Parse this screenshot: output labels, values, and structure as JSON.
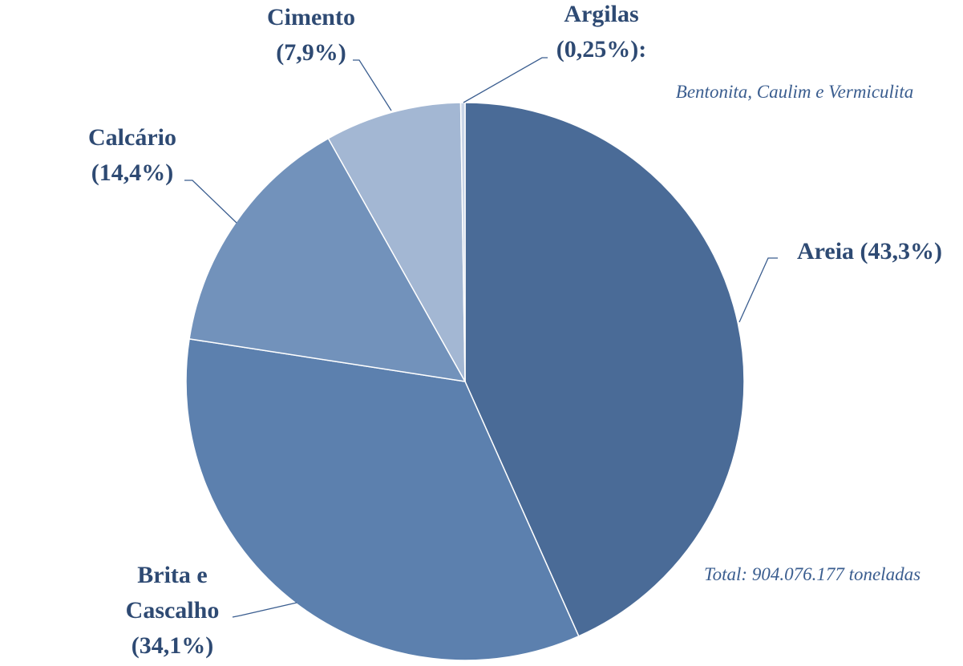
{
  "chart_data": {
    "type": "pie",
    "categories": [
      "Areia",
      "Brita e Cascalho",
      "Calcário",
      "Cimento",
      "Argilas"
    ],
    "values": [
      43.3,
      34.1,
      14.4,
      7.9,
      0.25
    ],
    "value_labels": [
      "(43,3%)",
      "(34,1%)",
      "(14,4%)",
      "(7,9%)",
      "(0,25%):"
    ],
    "colors": [
      "#4a6b97",
      "#5c80ae",
      "#7292bb",
      "#a3b7d3",
      "#c9d5e7"
    ],
    "annotations": [
      "Bentonita, Caulim e Vermiculita",
      "Total: 904.076.177 toneladas"
    ]
  }
}
